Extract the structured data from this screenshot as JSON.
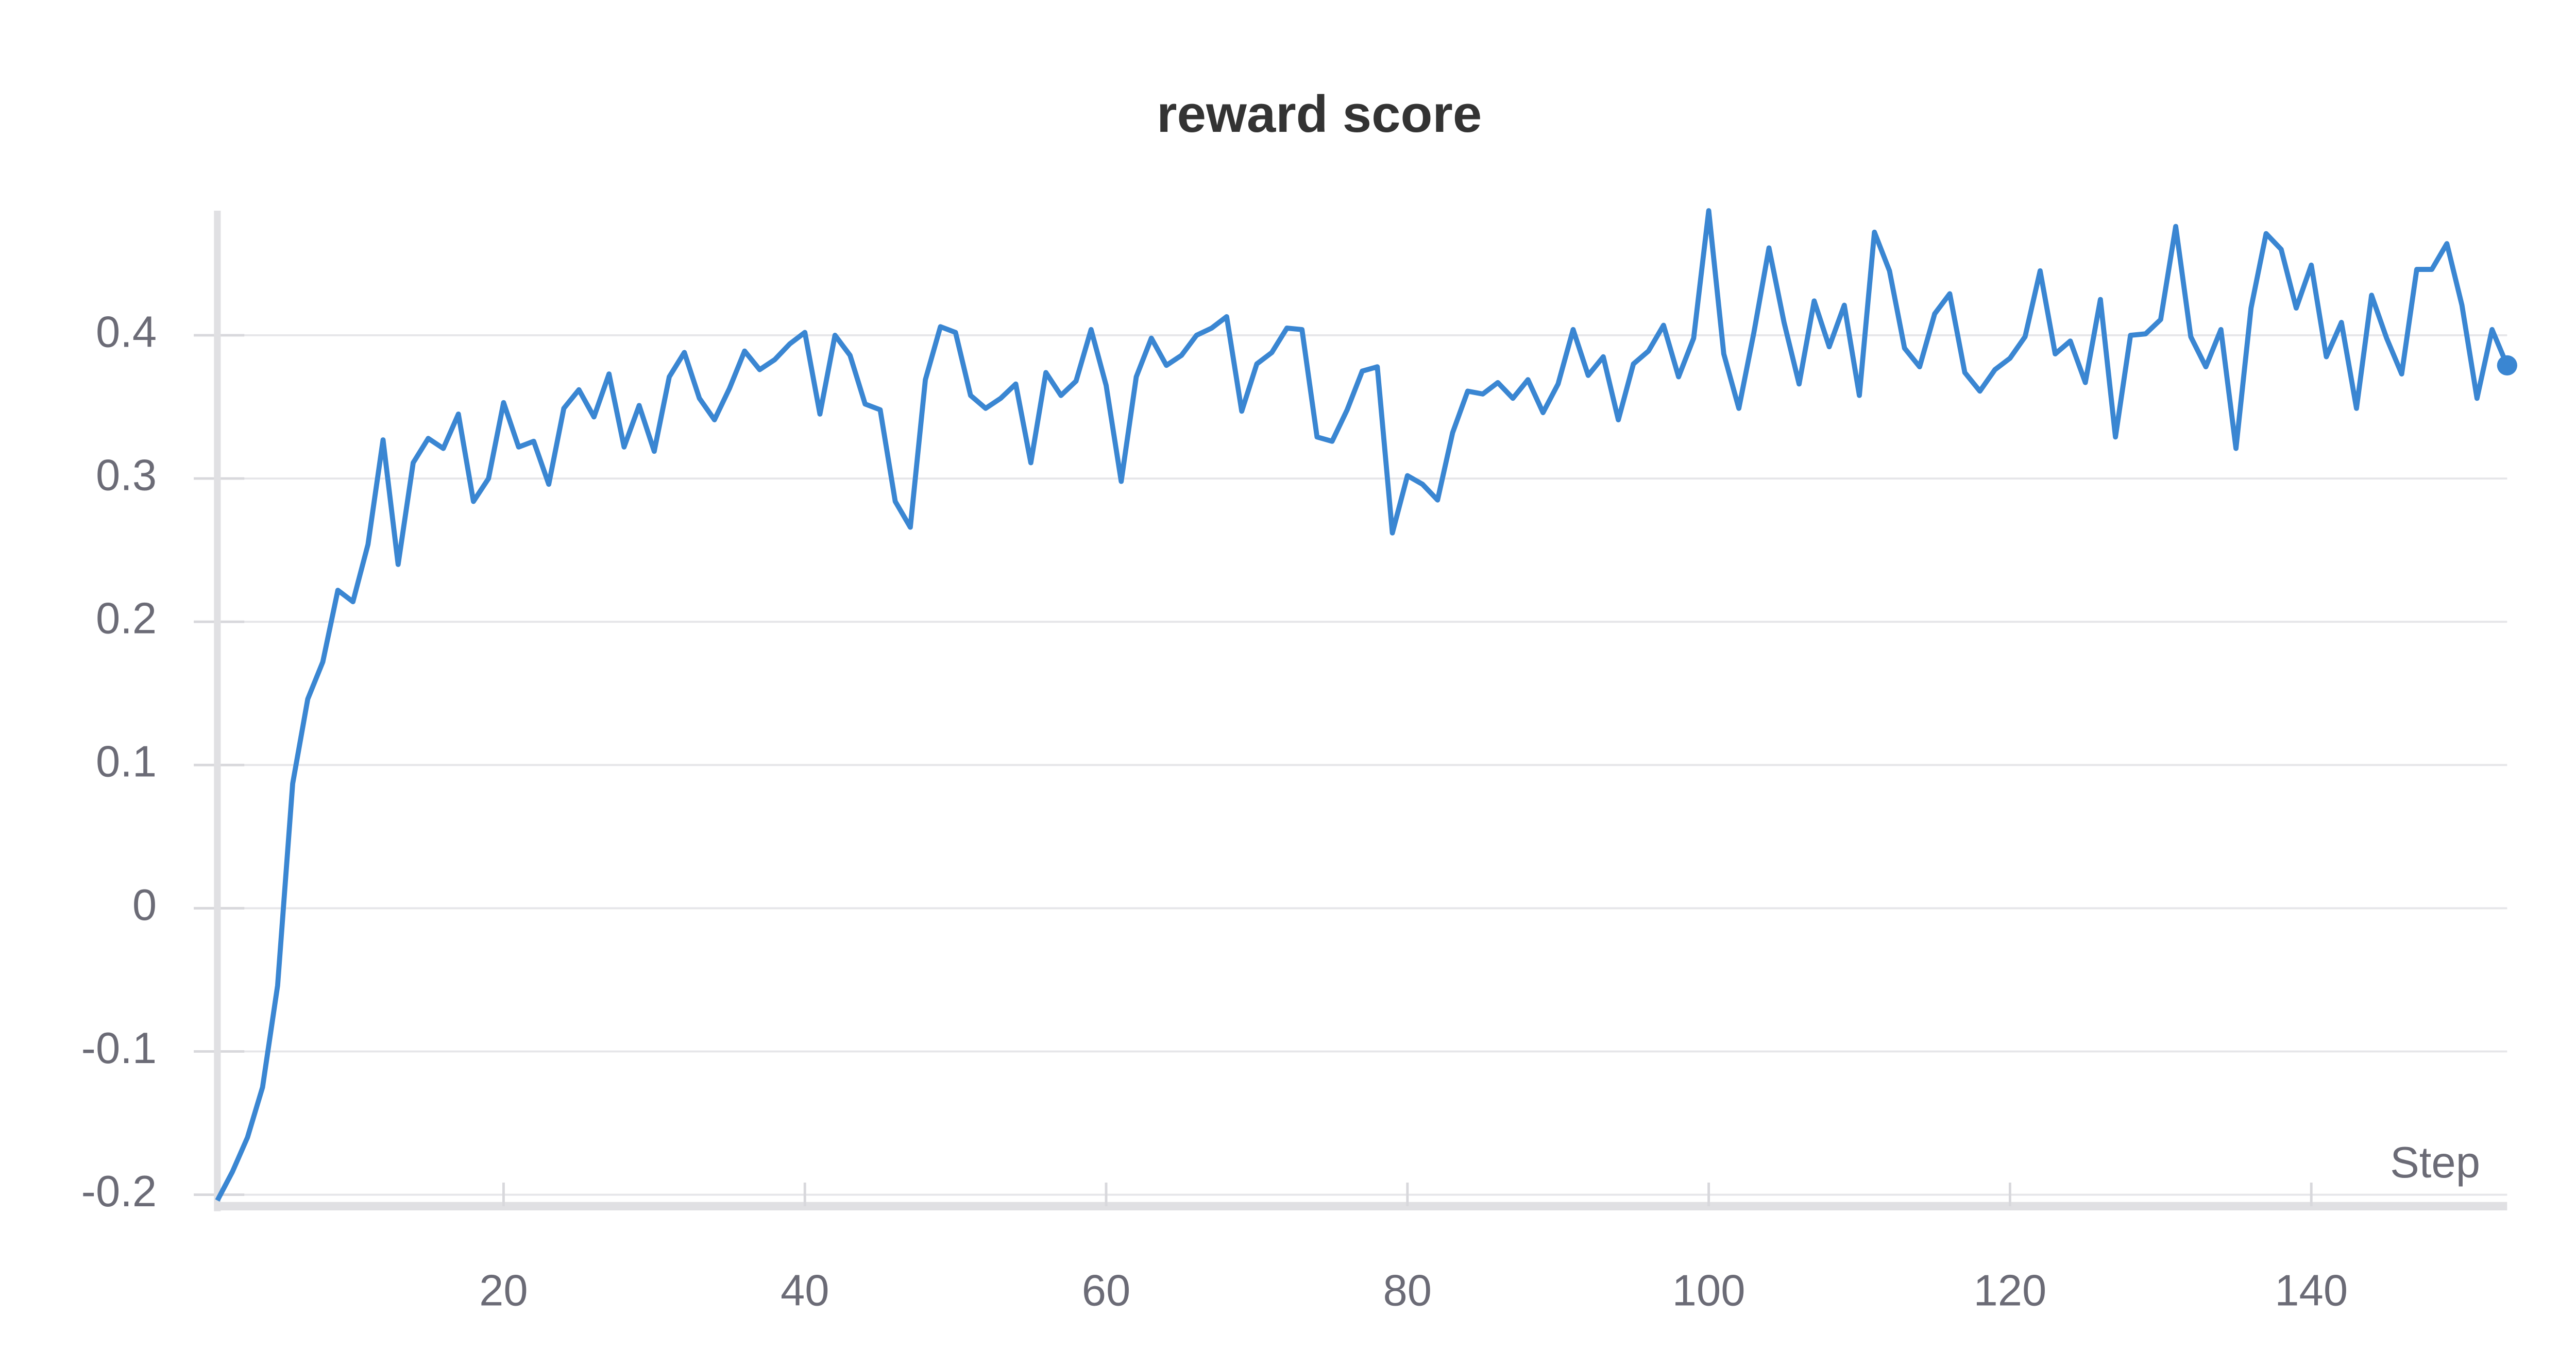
{
  "chart_data": {
    "type": "line",
    "title": "reward score",
    "xlabel": "Step",
    "x": [
      1,
      2,
      3,
      4,
      5,
      6,
      7,
      8,
      9,
      10,
      11,
      12,
      13,
      14,
      15,
      16,
      17,
      18,
      19,
      20,
      21,
      22,
      23,
      24,
      25,
      26,
      27,
      28,
      29,
      30,
      31,
      32,
      33,
      34,
      35,
      36,
      37,
      38,
      39,
      40,
      41,
      42,
      43,
      44,
      45,
      46,
      47,
      48,
      49,
      50,
      51,
      52,
      53,
      54,
      55,
      56,
      57,
      58,
      59,
      60,
      61,
      62,
      63,
      64,
      65,
      66,
      67,
      68,
      69,
      70,
      71,
      72,
      73,
      74,
      75,
      76,
      77,
      78,
      79,
      80,
      81,
      82,
      83,
      84,
      85,
      86,
      87,
      88,
      89,
      90,
      91,
      92,
      93,
      94,
      95,
      96,
      97,
      98,
      99,
      100,
      101,
      102,
      103,
      104,
      105,
      106,
      107,
      108,
      109,
      110,
      111,
      112,
      113,
      114,
      115,
      116,
      117,
      118,
      119,
      120,
      121,
      122,
      123,
      124,
      125,
      126,
      127,
      128,
      129,
      130,
      131,
      132,
      133,
      134,
      135,
      136,
      137,
      138,
      139,
      140,
      141,
      142,
      143,
      144,
      145,
      146,
      147,
      148,
      149,
      150,
      151,
      152,
      153
    ],
    "series": [
      {
        "name": "reward score",
        "color": "#3a86d2",
        "values": [
          -0.204,
          -0.184,
          -0.16,
          -0.125,
          -0.054,
          0.087,
          0.146,
          0.172,
          0.222,
          0.214,
          0.254,
          0.327,
          0.24,
          0.311,
          0.328,
          0.321,
          0.345,
          0.284,
          0.3,
          0.353,
          0.322,
          0.326,
          0.296,
          0.349,
          0.362,
          0.343,
          0.373,
          0.322,
          0.351,
          0.319,
          0.371,
          0.388,
          0.356,
          0.341,
          0.363,
          0.389,
          0.376,
          0.383,
          0.394,
          0.402,
          0.345,
          0.4,
          0.386,
          0.352,
          0.348,
          0.284,
          0.266,
          0.369,
          0.406,
          0.402,
          0.358,
          0.349,
          0.356,
          0.366,
          0.311,
          0.374,
          0.358,
          0.368,
          0.404,
          0.365,
          0.298,
          0.371,
          0.398,
          0.379,
          0.386,
          0.4,
          0.405,
          0.413,
          0.347,
          0.38,
          0.388,
          0.405,
          0.404,
          0.329,
          0.326,
          0.348,
          0.375,
          0.378,
          0.262,
          0.302,
          0.296,
          0.285,
          0.332,
          0.361,
          0.359,
          0.367,
          0.356,
          0.369,
          0.346,
          0.366,
          0.404,
          0.372,
          0.385,
          0.341,
          0.38,
          0.389,
          0.407,
          0.371,
          0.398,
          0.487,
          0.387,
          0.349,
          0.402,
          0.461,
          0.409,
          0.366,
          0.424,
          0.392,
          0.421,
          0.358,
          0.472,
          0.445,
          0.391,
          0.378,
          0.415,
          0.429,
          0.374,
          0.361,
          0.376,
          0.384,
          0.399,
          0.445,
          0.387,
          0.396,
          0.367,
          0.425,
          0.329,
          0.4,
          0.401,
          0.411,
          0.476,
          0.399,
          0.378,
          0.404,
          0.321,
          0.419,
          0.471,
          0.46,
          0.419,
          0.449,
          0.385,
          0.409,
          0.349,
          0.428,
          0.398,
          0.373,
          0.446,
          0.446,
          0.464,
          0.421,
          0.356,
          0.404,
          0.379
        ]
      }
    ],
    "xlim": [
      1,
      153
    ],
    "xticks": [
      20,
      40,
      60,
      80,
      100,
      120,
      140
    ],
    "ylim": [
      -0.208,
      0.487
    ],
    "yticks": [
      -0.2,
      -0.1,
      0,
      0.1,
      0.2,
      0.3,
      0.4
    ],
    "grid": true
  }
}
